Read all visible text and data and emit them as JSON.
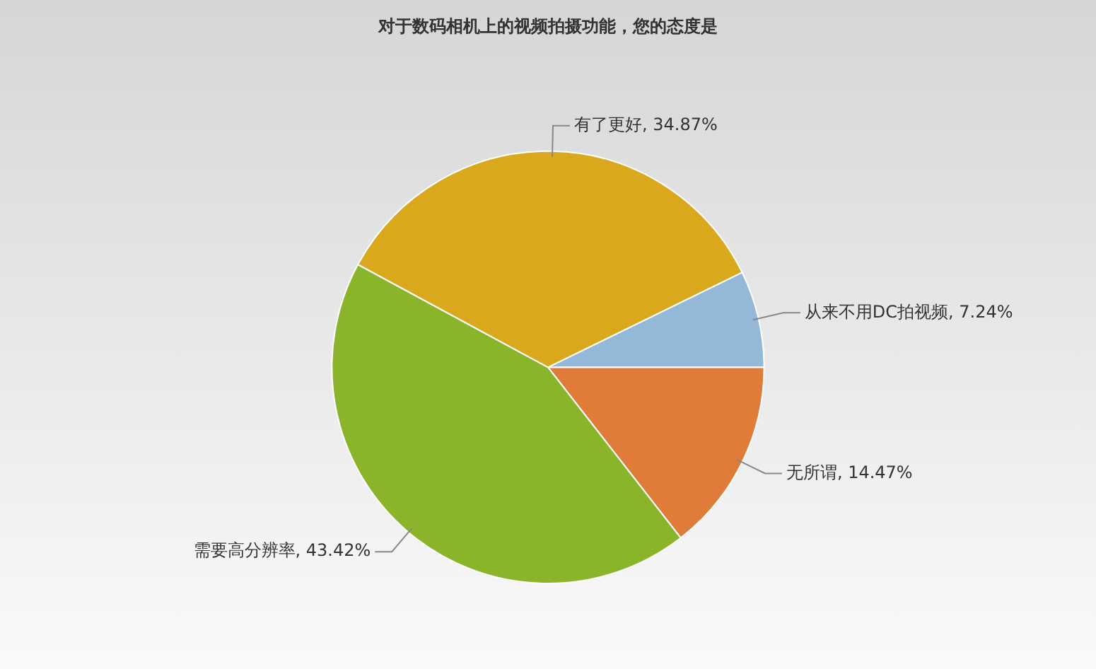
{
  "chart_data": {
    "type": "pie",
    "title": "对于数码相机上的视频拍摄功能，您的态度是",
    "categories": [
      "从来不用DC拍视频",
      "无所谓",
      "需要高分辨率",
      "有了更好"
    ],
    "values": [
      7.24,
      14.47,
      43.42,
      34.87
    ],
    "value_labels": [
      "7.24%",
      "14.47%",
      "43.42%",
      "34.87%"
    ],
    "colors": [
      "#94b8d8",
      "#e07b3a",
      "#8ab52a",
      "#d9a81c"
    ],
    "legend": false
  }
}
